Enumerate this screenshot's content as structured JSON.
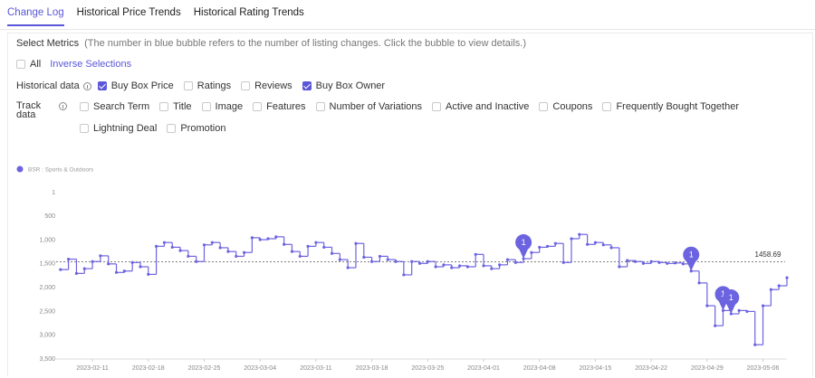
{
  "tabs": {
    "items": [
      "Change Log",
      "Historical Price Trends",
      "Historical Rating Trends"
    ],
    "active": 0
  },
  "select_metrics": {
    "label": "Select Metrics",
    "note": "(The number in blue bubble refers to the number of listing changes. Click the bubble to view details.)",
    "all": {
      "label": "All",
      "checked": false
    },
    "inverse": "Inverse Selections"
  },
  "historical_data": {
    "label": "Historical data",
    "options": [
      {
        "label": "Buy Box Price",
        "checked": true
      },
      {
        "label": "Ratings",
        "checked": false
      },
      {
        "label": "Reviews",
        "checked": false
      },
      {
        "label": "Buy Box Owner",
        "checked": true
      }
    ]
  },
  "track_data": {
    "label": "Track data",
    "options": [
      {
        "label": "Search Term",
        "checked": false
      },
      {
        "label": "Title",
        "checked": false
      },
      {
        "label": "Image",
        "checked": false
      },
      {
        "label": "Features",
        "checked": false
      },
      {
        "label": "Number of Variations",
        "checked": false
      },
      {
        "label": "Active and Inactive",
        "checked": false
      },
      {
        "label": "Coupons",
        "checked": false
      },
      {
        "label": "Frequently Bought Together",
        "checked": false
      },
      {
        "label": "Lightning Deal",
        "checked": false
      },
      {
        "label": "Promotion",
        "checked": false
      }
    ]
  },
  "chart_data": {
    "type": "line",
    "step": true,
    "x": [
      "2023-02-07",
      "2023-02-08",
      "2023-02-09",
      "2023-02-10",
      "2023-02-11",
      "2023-02-12",
      "2023-02-13",
      "2023-02-14",
      "2023-02-15",
      "2023-02-16",
      "2023-02-17",
      "2023-02-18",
      "2023-02-19",
      "2023-02-20",
      "2023-02-21",
      "2023-02-22",
      "2023-02-23",
      "2023-02-24",
      "2023-02-25",
      "2023-02-26",
      "2023-02-27",
      "2023-02-28",
      "2023-03-01",
      "2023-03-02",
      "2023-03-03",
      "2023-03-04",
      "2023-03-05",
      "2023-03-06",
      "2023-03-07",
      "2023-03-08",
      "2023-03-09",
      "2023-03-10",
      "2023-03-11",
      "2023-03-12",
      "2023-03-13",
      "2023-03-14",
      "2023-03-15",
      "2023-03-16",
      "2023-03-17",
      "2023-03-18",
      "2023-03-19",
      "2023-03-20",
      "2023-03-21",
      "2023-03-22",
      "2023-03-23",
      "2023-03-24",
      "2023-03-25",
      "2023-03-26",
      "2023-03-27",
      "2023-03-28",
      "2023-03-29",
      "2023-03-30",
      "2023-03-31",
      "2023-04-01",
      "2023-04-02",
      "2023-04-03",
      "2023-04-04",
      "2023-04-05",
      "2023-04-06",
      "2023-04-07",
      "2023-04-08",
      "2023-04-09",
      "2023-04-10",
      "2023-04-11",
      "2023-04-12",
      "2023-04-13",
      "2023-04-14",
      "2023-04-15",
      "2023-04-16",
      "2023-04-17",
      "2023-04-18",
      "2023-04-19",
      "2023-04-20",
      "2023-04-21",
      "2023-04-22",
      "2023-04-23",
      "2023-04-24",
      "2023-04-25",
      "2023-04-26",
      "2023-04-27",
      "2023-04-28",
      "2023-04-29",
      "2023-04-30",
      "2023-05-01",
      "2023-05-02",
      "2023-05-03",
      "2023-05-04",
      "2023-05-05",
      "2023-05-06",
      "2023-05-07",
      "2023-05-08",
      "2023-05-09"
    ],
    "series": [
      {
        "name": "BSR : Sports & Outdoors",
        "color": "#6c63e0",
        "values": [
          1620,
          1400,
          1700,
          1600,
          1450,
          1330,
          1500,
          1680,
          1650,
          1470,
          1560,
          1720,
          1130,
          1050,
          1150,
          1220,
          1340,
          1450,
          1100,
          1050,
          1160,
          1240,
          1340,
          1260,
          950,
          990,
          970,
          930,
          1090,
          1240,
          1340,
          1130,
          1050,
          1150,
          1280,
          1410,
          1580,
          1070,
          1360,
          1450,
          1340,
          1410,
          1450,
          1730,
          1450,
          1490,
          1450,
          1560,
          1520,
          1580,
          1540,
          1560,
          1300,
          1540,
          1600,
          1520,
          1410,
          1470,
          1390,
          1260,
          1150,
          1130,
          1070,
          1470,
          970,
          880,
          1090,
          1050,
          1100,
          1160,
          1560,
          1430,
          1450,
          1490,
          1450,
          1470,
          1490,
          1480,
          1500,
          1650,
          1900,
          2380,
          2800,
          2480,
          2550,
          2480,
          2500,
          3200,
          2380,
          2040,
          1960,
          1790
        ]
      }
    ],
    "xlim": [
      "2023-02-06",
      "2023-05-09"
    ],
    "xticks": [
      "2023-02-11",
      "2023-02-18",
      "2023-02-25",
      "2023-03-04",
      "2023-03-11",
      "2023-03-18",
      "2023-03-25",
      "2023-04-01",
      "2023-04-08",
      "2023-04-15",
      "2023-04-22",
      "2023-04-29",
      "2023-05-06"
    ],
    "ylim": [
      3500,
      1
    ],
    "yticks": [
      1,
      500,
      {
        "value": 1000,
        "label": "1,000"
      },
      {
        "value": 1500,
        "label": "1,500"
      },
      {
        "value": 2000,
        "label": "2,000"
      },
      {
        "value": 2500,
        "label": "2,500"
      },
      {
        "value": 3000,
        "label": "3,000"
      },
      {
        "value": 3500,
        "label": "3,500"
      }
    ],
    "reference_line": 1458.69,
    "bubbles": [
      {
        "x": "2023-04-06",
        "count": 1
      },
      {
        "x": "2023-04-27",
        "count": 1
      },
      {
        "x": "2023-05-01",
        "count": 1
      },
      {
        "x": "2023-05-02",
        "count": 1
      }
    ],
    "grid": false,
    "legend": "top-left"
  }
}
